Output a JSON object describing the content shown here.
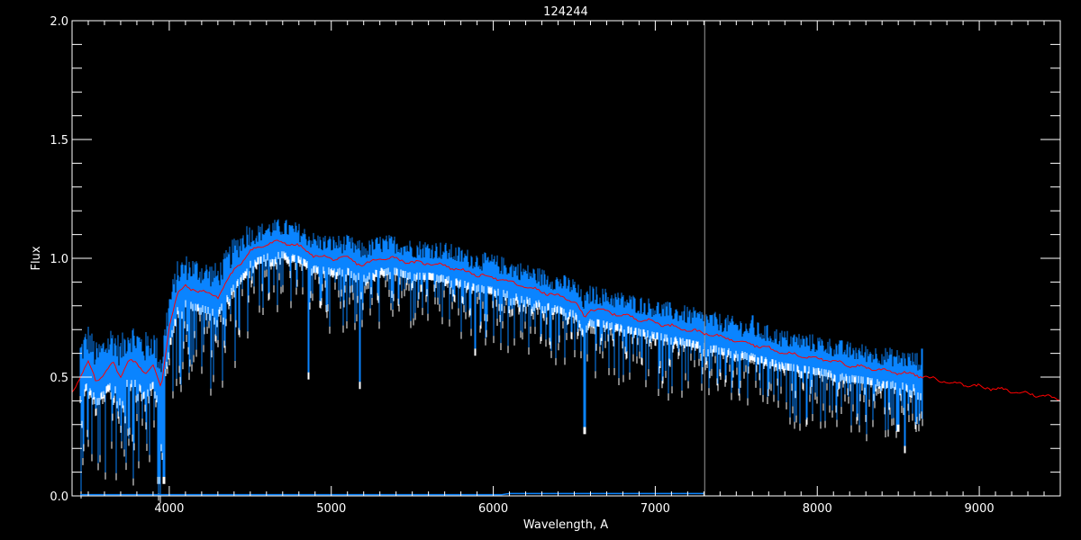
{
  "chart_data": {
    "type": "line",
    "title": "124244",
    "xlabel": "Wavelength, A",
    "ylabel": "Flux",
    "xlim": [
      3400,
      9500
    ],
    "ylim": [
      0,
      2
    ],
    "xticks": [
      4000,
      5000,
      6000,
      7000,
      8000,
      9000
    ],
    "xtick_labels": [
      "4000",
      "5000",
      "6000",
      "7000",
      "8000",
      "9000"
    ],
    "yticks": [
      0,
      0.5,
      1,
      1.5,
      2
    ],
    "ytick_labels": [
      "0.0",
      "0.5",
      "1.0",
      "1.5",
      "2.0"
    ],
    "grid": false,
    "colors": {
      "background": "#000000",
      "axes": "#ffffff",
      "observed": "#ffffff",
      "observed_overlay": "#0a84ff",
      "model": "#ff0000",
      "marker_line": "#9a9a9a"
    },
    "series": [
      {
        "role": "model",
        "color": "#ff0000",
        "x": [
          3400,
          3450,
          3500,
          3550,
          3600,
          3650,
          3700,
          3750,
          3800,
          3850,
          3900,
          3950,
          4000,
          4050,
          4100,
          4200,
          4300,
          4400,
          4500,
          4600,
          4700,
          4800,
          4900,
          5000,
          5100,
          5200,
          5300,
          5400,
          5500,
          5600,
          5700,
          5800,
          5900,
          6000,
          6200,
          6400,
          6500,
          6563,
          6600,
          6800,
          7000,
          7200,
          7400,
          7600,
          7800,
          8000,
          8200,
          8400,
          8600,
          8800,
          9000,
          9200,
          9400,
          9500
        ],
        "y": [
          0.44,
          0.5,
          0.56,
          0.48,
          0.52,
          0.56,
          0.5,
          0.58,
          0.55,
          0.52,
          0.55,
          0.45,
          0.72,
          0.85,
          0.88,
          0.86,
          0.84,
          0.95,
          1.03,
          1.06,
          1.07,
          1.05,
          1.01,
          1.0,
          1.0,
          0.97,
          1.0,
          1.0,
          0.98,
          0.98,
          0.97,
          0.95,
          0.93,
          0.92,
          0.88,
          0.84,
          0.82,
          0.75,
          0.79,
          0.76,
          0.73,
          0.7,
          0.67,
          0.64,
          0.6,
          0.58,
          0.55,
          0.53,
          0.51,
          0.48,
          0.46,
          0.44,
          0.42,
          0.41
        ]
      },
      {
        "role": "observed",
        "color": "#0a84ff",
        "x_range": [
          3450,
          8650
        ],
        "absorption_lines": [
          {
            "x": 3933,
            "y": 0.08
          },
          {
            "x": 3968,
            "y": 0.08
          },
          {
            "x": 4861,
            "y": 0.52
          },
          {
            "x": 5175,
            "y": 0.48
          },
          {
            "x": 5890,
            "y": 0.62
          },
          {
            "x": 6563,
            "y": 0.29
          },
          {
            "x": 8498,
            "y": 0.3
          },
          {
            "x": 8542,
            "y": 0.21
          }
        ],
        "emission_spikes": [
          {
            "x": 7600,
            "y": 0.76
          },
          {
            "x": 8650,
            "y": 0.62
          }
        ]
      },
      {
        "role": "error",
        "color": "#0a84ff",
        "x": [
          3450,
          6050,
          6100,
          7300
        ],
        "y": [
          0.005,
          0.005,
          0.01,
          0.01
        ]
      }
    ],
    "vertical_marker": {
      "x": 7305,
      "color": "#9a9a9a"
    }
  }
}
